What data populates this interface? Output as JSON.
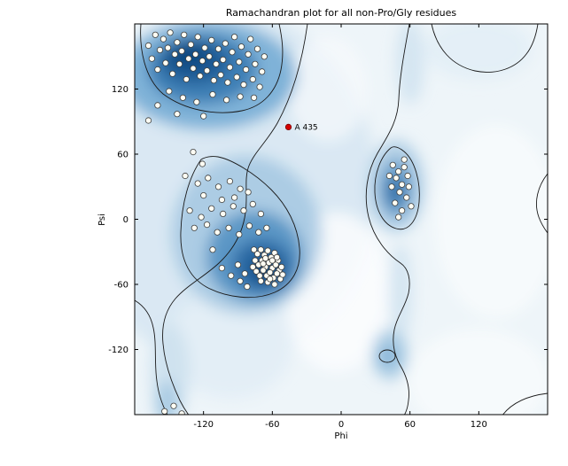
{
  "header": {
    "title": "Ramachandran plot for all non-Pro/Gly residues"
  },
  "chart_data": {
    "type": "scatter",
    "title": "Ramachandran plot for all non-Pro/Gly residues",
    "xlabel": "Phi",
    "ylabel": "Psi",
    "xlim": [
      -180,
      180
    ],
    "ylim": [
      -180,
      180
    ],
    "xticks": [
      -120,
      -60,
      0,
      60,
      120
    ],
    "yticks": [
      -120,
      -60,
      0,
      60,
      120
    ],
    "grid": false,
    "legend": null,
    "plot_background": "#eef5f9",
    "contour_color": "#1a1a1a",
    "density_palette": [
      "#eef5f9",
      "#d7e7f2",
      "#a9cbe3",
      "#6ba0cc",
      "#2e6ea7",
      "#114a80"
    ],
    "series": [
      {
        "name": "residue",
        "marker": {
          "fill": "#fffef4",
          "stroke": "#3f3f3f",
          "stroke_width": 0.8,
          "radius": 3.2
        },
        "points": [
          [
            -168,
            160
          ],
          [
            -165,
            148
          ],
          [
            -162,
            170
          ],
          [
            -160,
            138
          ],
          [
            -158,
            156
          ],
          [
            -155,
            166
          ],
          [
            -153,
            144
          ],
          [
            -151,
            158
          ],
          [
            -149,
            172
          ],
          [
            -147,
            134
          ],
          [
            -145,
            152
          ],
          [
            -143,
            163
          ],
          [
            -141,
            143
          ],
          [
            -139,
            155
          ],
          [
            -137,
            170
          ],
          [
            -135,
            129
          ],
          [
            -133,
            148
          ],
          [
            -131,
            161
          ],
          [
            -129,
            139
          ],
          [
            -127,
            152
          ],
          [
            -125,
            168
          ],
          [
            -123,
            132
          ],
          [
            -121,
            146
          ],
          [
            -119,
            158
          ],
          [
            -117,
            137
          ],
          [
            -115,
            150
          ],
          [
            -113,
            165
          ],
          [
            -111,
            128
          ],
          [
            -109,
            143
          ],
          [
            -107,
            157
          ],
          [
            -105,
            133
          ],
          [
            -103,
            147
          ],
          [
            -101,
            162
          ],
          [
            -99,
            126
          ],
          [
            -97,
            140
          ],
          [
            -95,
            154
          ],
          [
            -93,
            168
          ],
          [
            -91,
            131
          ],
          [
            -89,
            145
          ],
          [
            -87,
            159
          ],
          [
            -85,
            124
          ],
          [
            -83,
            138
          ],
          [
            -81,
            152
          ],
          [
            -79,
            166
          ],
          [
            -77,
            129
          ],
          [
            -75,
            143
          ],
          [
            -73,
            157
          ],
          [
            -71,
            122
          ],
          [
            -69,
            136
          ],
          [
            -67,
            150
          ],
          [
            -150,
            118
          ],
          [
            -138,
            112
          ],
          [
            -126,
            108
          ],
          [
            -112,
            115
          ],
          [
            -100,
            110
          ],
          [
            -88,
            113
          ],
          [
            -76,
            112
          ],
          [
            -160,
            105
          ],
          [
            -143,
            97
          ],
          [
            -120,
            95
          ],
          [
            -168,
            91
          ],
          [
            -129,
            62
          ],
          [
            -121,
            51
          ],
          [
            -136,
            40
          ],
          [
            -125,
            33
          ],
          [
            -116,
            38
          ],
          [
            -107,
            30
          ],
          [
            -97,
            35
          ],
          [
            -88,
            28
          ],
          [
            -120,
            22
          ],
          [
            -104,
            18
          ],
          [
            -93,
            20
          ],
          [
            -81,
            25
          ],
          [
            -132,
            8
          ],
          [
            -122,
            2
          ],
          [
            -113,
            10
          ],
          [
            -103,
            5
          ],
          [
            -94,
            12
          ],
          [
            -85,
            8
          ],
          [
            -77,
            14
          ],
          [
            -70,
            5
          ],
          [
            -128,
            -8
          ],
          [
            -117,
            -5
          ],
          [
            -108,
            -12
          ],
          [
            -98,
            -8
          ],
          [
            -89,
            -14
          ],
          [
            -80,
            -6
          ],
          [
            -72,
            -12
          ],
          [
            -65,
            -8
          ],
          [
            -76,
            -28
          ],
          [
            -73,
            -32
          ],
          [
            -70,
            -28
          ],
          [
            -67,
            -33
          ],
          [
            -64,
            -29
          ],
          [
            -61,
            -35
          ],
          [
            -58,
            -31
          ],
          [
            -55,
            -38
          ],
          [
            -75,
            -38
          ],
          [
            -72,
            -42
          ],
          [
            -69,
            -38
          ],
          [
            -66,
            -44
          ],
          [
            -63,
            -40
          ],
          [
            -60,
            -45
          ],
          [
            -57,
            -42
          ],
          [
            -54,
            -47
          ],
          [
            -74,
            -48
          ],
          [
            -71,
            -52
          ],
          [
            -68,
            -47
          ],
          [
            -65,
            -52
          ],
          [
            -62,
            -49
          ],
          [
            -59,
            -54
          ],
          [
            -56,
            -50
          ],
          [
            -53,
            -55
          ],
          [
            -77,
            -44
          ],
          [
            -70,
            -57
          ],
          [
            -64,
            -58
          ],
          [
            -58,
            -60
          ],
          [
            -52,
            -44
          ],
          [
            -51,
            -51
          ],
          [
            -66,
            -36
          ],
          [
            -62,
            -55
          ],
          [
            -68,
            -41
          ],
          [
            -60,
            -38
          ],
          [
            -56,
            -35
          ],
          [
            -96,
            -52
          ],
          [
            -104,
            -45
          ],
          [
            -88,
            -57
          ],
          [
            -82,
            -62
          ],
          [
            -90,
            -42
          ],
          [
            -112,
            -28
          ],
          [
            -84,
            -50
          ],
          [
            45,
            50
          ],
          [
            50,
            44
          ],
          [
            55,
            48
          ],
          [
            48,
            38
          ],
          [
            53,
            32
          ],
          [
            58,
            40
          ],
          [
            44,
            30
          ],
          [
            51,
            25
          ],
          [
            57,
            20
          ],
          [
            47,
            15
          ],
          [
            53,
            8
          ],
          [
            59,
            30
          ],
          [
            42,
            40
          ],
          [
            55,
            55
          ],
          [
            50,
            2
          ],
          [
            61,
            12
          ],
          [
            -154,
            -177
          ],
          [
            -146,
            -172
          ],
          [
            -139,
            -179
          ]
        ]
      },
      {
        "name": "highlighted-residue",
        "marker": {
          "fill": "#d40000",
          "stroke": "#7a0000",
          "stroke_width": 0.8,
          "radius": 3.2
        },
        "points": [
          [
            -46,
            85
          ]
        ]
      }
    ],
    "annotations": [
      {
        "text": "A 435",
        "phi": -46,
        "psi": 85,
        "dx": 7,
        "dy": 3
      }
    ]
  }
}
